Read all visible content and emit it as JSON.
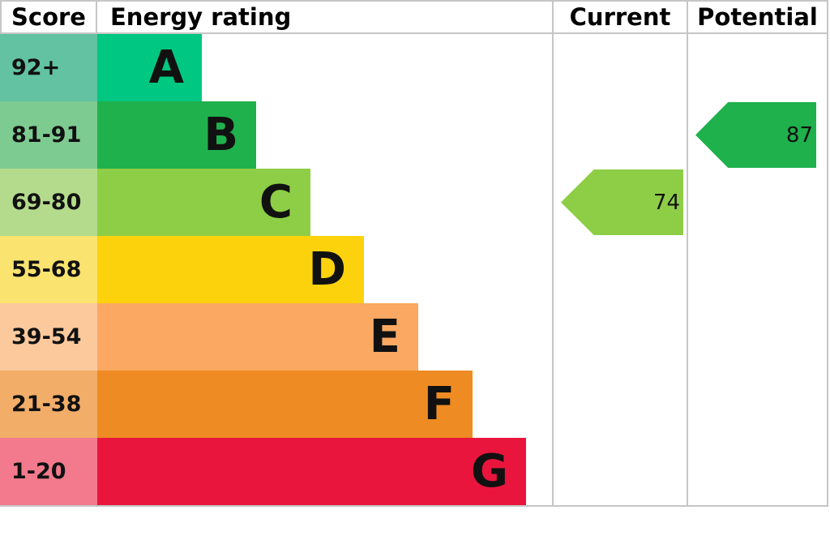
{
  "header": {
    "score": "Score",
    "energy_rating": "Energy rating",
    "current": "Current",
    "potential": "Potential"
  },
  "rows": [
    {
      "score": "92+",
      "letter": "A",
      "bar_color": "#00c781",
      "score_color": "#62c2a1"
    },
    {
      "score": "81-91",
      "letter": "B",
      "bar_color": "#1fb14c",
      "score_color": "#7ecb91"
    },
    {
      "score": "69-80",
      "letter": "C",
      "bar_color": "#8dce46",
      "score_color": "#b4db8c"
    },
    {
      "score": "55-68",
      "letter": "D",
      "bar_color": "#fcd20c",
      "score_color": "#fae36e"
    },
    {
      "score": "39-54",
      "letter": "E",
      "bar_color": "#faa862",
      "score_color": "#fcc99d"
    },
    {
      "score": "21-38",
      "letter": "F",
      "bar_color": "#ee8b22",
      "score_color": "#f2ad69"
    },
    {
      "score": "1-20",
      "letter": "G",
      "bar_color": "#e9153c",
      "score_color": "#f37a8c"
    }
  ],
  "current": {
    "value": "74",
    "color": "#8dce46"
  },
  "potential": {
    "value": "87",
    "color": "#1fb14c"
  },
  "colors": {
    "grid_border": "#c6c6c6",
    "text": "#000000"
  },
  "chart_data": {
    "type": "bar",
    "title": "Energy rating (EPC) bands",
    "columns": [
      "Score",
      "Energy rating",
      "Current",
      "Potential"
    ],
    "categories": [
      "A",
      "B",
      "C",
      "D",
      "E",
      "F",
      "G"
    ],
    "score_ranges": [
      "92+",
      "81-91",
      "69-80",
      "55-68",
      "39-54",
      "21-38",
      "1-20"
    ],
    "bar_lengths_relative": [
      1,
      2,
      3,
      4,
      5,
      6,
      7
    ],
    "band_colors": [
      "#00c781",
      "#1fb14c",
      "#8dce46",
      "#fcd20c",
      "#faa862",
      "#ee8b22",
      "#e9153c"
    ],
    "series": [
      {
        "name": "Current",
        "value": 74,
        "band": "C",
        "color": "#8dce46"
      },
      {
        "name": "Potential",
        "value": 87,
        "band": "B",
        "color": "#1fb14c"
      }
    ],
    "legend_position": "none",
    "grid": false
  }
}
